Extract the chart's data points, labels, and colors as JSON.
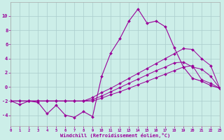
{
  "background_color": "#cceee8",
  "grid_color": "#aacccc",
  "line_color": "#990099",
  "xlabel": "Windchill (Refroidissement éolien,°C)",
  "xlim": [
    0,
    23
  ],
  "ylim": [
    -5.5,
    12.0
  ],
  "xticks": [
    0,
    1,
    2,
    3,
    4,
    5,
    6,
    7,
    8,
    9,
    10,
    11,
    12,
    13,
    14,
    15,
    16,
    17,
    18,
    19,
    20,
    21,
    22,
    23
  ],
  "yticks": [
    -4,
    -2,
    0,
    2,
    4,
    6,
    8,
    10
  ],
  "main_line": [
    -2.0,
    -2.5,
    -2.0,
    -2.2,
    -3.8,
    -2.6,
    -4.0,
    -4.3,
    -3.5,
    -4.2,
    1.5,
    4.8,
    6.8,
    9.3,
    11.0,
    9.0,
    9.3,
    8.5,
    5.5,
    2.8,
    1.2,
    0.8,
    0.2,
    -0.2
  ],
  "reg1": [
    -2.0,
    -2.0,
    -2.0,
    -2.0,
    -2.0,
    -2.0,
    -2.0,
    -2.0,
    -2.0,
    -2.0,
    -1.6,
    -1.1,
    -0.7,
    -0.2,
    0.3,
    0.8,
    1.3,
    1.8,
    2.3,
    2.8,
    3.0,
    1.0,
    0.5,
    -0.2
  ],
  "reg2": [
    -2.0,
    -2.0,
    -2.0,
    -2.0,
    -2.0,
    -2.0,
    -2.0,
    -2.0,
    -2.0,
    -1.8,
    -1.3,
    -0.7,
    -0.1,
    0.5,
    1.1,
    1.7,
    2.3,
    2.8,
    3.4,
    3.5,
    2.8,
    2.5,
    1.5,
    -0.2
  ],
  "reg3": [
    -2.0,
    -2.0,
    -2.0,
    -2.0,
    -2.0,
    -2.0,
    -2.0,
    -2.0,
    -2.0,
    -1.5,
    -0.8,
    -0.2,
    0.5,
    1.2,
    1.9,
    2.6,
    3.3,
    4.0,
    4.7,
    5.4,
    5.3,
    4.0,
    3.0,
    -0.2
  ]
}
